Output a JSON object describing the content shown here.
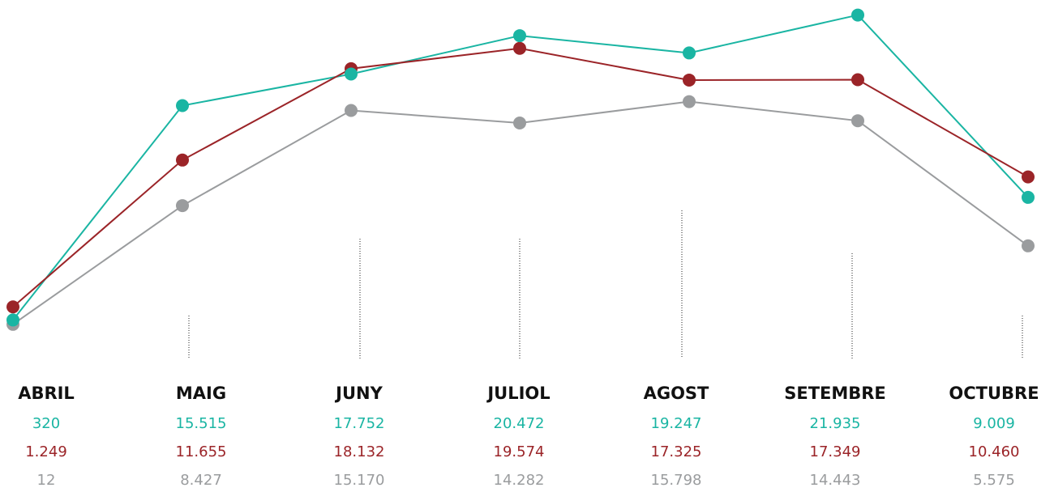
{
  "chart_data": {
    "type": "line",
    "categories": [
      "ABRIL",
      "MAIG",
      "JUNY",
      "JULIOL",
      "AGOST",
      "SETEMBRE",
      "OCTUBRE"
    ],
    "series": [
      {
        "color": "#1ab5a3",
        "values": [
          320,
          15515,
          17752,
          20472,
          19247,
          21935,
          9009
        ],
        "value_labels": [
          "320",
          "15.515",
          "17.752",
          "20.472",
          "19.247",
          "21.935",
          "9.009"
        ]
      },
      {
        "color": "#9b2428",
        "values": [
          1249,
          11655,
          18132,
          19574,
          17325,
          17349,
          10460
        ],
        "value_labels": [
          "1.249",
          "11.655",
          "18.132",
          "19.574",
          "17.325",
          "17.349",
          "10.460"
        ]
      },
      {
        "color": "#9a9c9e",
        "values": [
          12,
          8427,
          15170,
          14282,
          15798,
          14443,
          5575
        ],
        "value_labels": [
          "12",
          "8.427",
          "15.170",
          "14.282",
          "15.798",
          "14.443",
          "5.575"
        ]
      }
    ],
    "ylim": [
      0,
      23000
    ]
  }
}
